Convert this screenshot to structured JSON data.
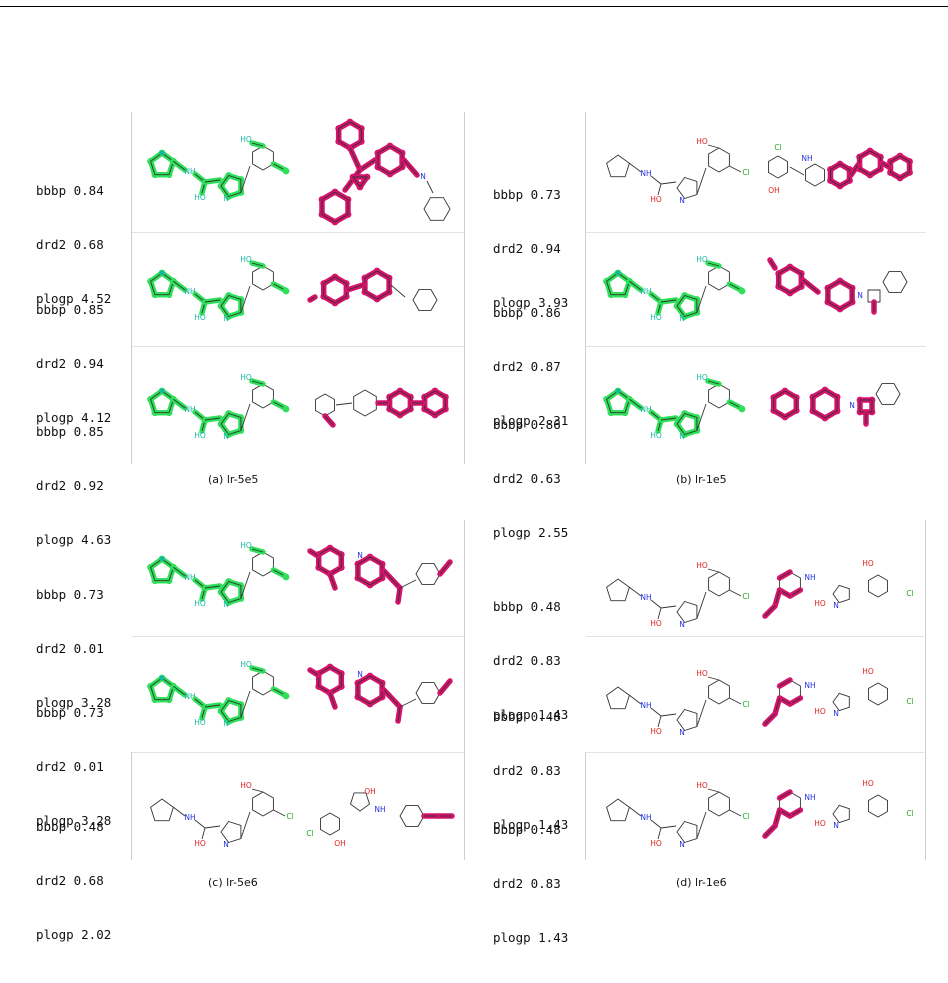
{
  "panels": [
    {
      "caption": "(a) lr-5e5",
      "rows": [
        {
          "bbbp": "bbbp 0.84",
          "drd2": "drd2 0.68",
          "plogp": "plogp 4.52"
        },
        {
          "bbbp": "bbbp 0.85",
          "drd2": "drd2 0.94",
          "plogp": "plogp 4.12"
        },
        {
          "bbbp": "bbbp 0.85",
          "drd2": "drd2 0.92",
          "plogp": "plogp 4.63"
        }
      ]
    },
    {
      "caption": "(b) lr-1e5",
      "rows": [
        {
          "bbbp": "bbbp 0.73",
          "drd2": "drd2 0.94",
          "plogp": "plogp 3.93"
        },
        {
          "bbbp": "bbbp 0.86",
          "drd2": "drd2 0.87",
          "plogp": "plogp 2.31"
        },
        {
          "bbbp": "bbbp 0.86",
          "drd2": "drd2 0.63",
          "plogp": "plogp 2.55"
        }
      ]
    },
    {
      "caption": "(c) lr-5e6",
      "rows": [
        {
          "bbbp": "bbbp 0.73",
          "drd2": "drd2 0.01",
          "plogp": "plogp 3.28"
        },
        {
          "bbbp": "bbbp 0.73",
          "drd2": "drd2 0.01",
          "plogp": "plogp 3.28"
        },
        {
          "bbbp": "bbbp 0.48",
          "drd2": "drd2 0.68",
          "plogp": "plogp 2.02"
        }
      ]
    },
    {
      "caption": "(d) lr-1e6",
      "rows": [
        {
          "bbbp": "bbbp 0.48",
          "drd2": "drd2 0.83",
          "plogp": "plogp 1.43"
        },
        {
          "bbbp": "bbbp 0.48",
          "drd2": "drd2 0.83",
          "plogp": "plogp 1.43"
        },
        {
          "bbbp": "bbbp 0.48",
          "drd2": "drd2 0.83",
          "plogp": "plogp 1.43"
        }
      ]
    }
  ],
  "atom_labels": {
    "hydroxyl": "HO",
    "hydroxyl_right": "OH",
    "amine": "NH",
    "chlorine": "Cl",
    "nitrogen": "N"
  },
  "colors": {
    "scaffold_highlight": "#2fe05a",
    "scaffold_edge": "#16b6a0",
    "generated_highlight": "#d4136b",
    "bond": "#333333",
    "oxygen": "#e02020",
    "nitrogen": "#2233dd",
    "chlorine": "#22aa22"
  }
}
